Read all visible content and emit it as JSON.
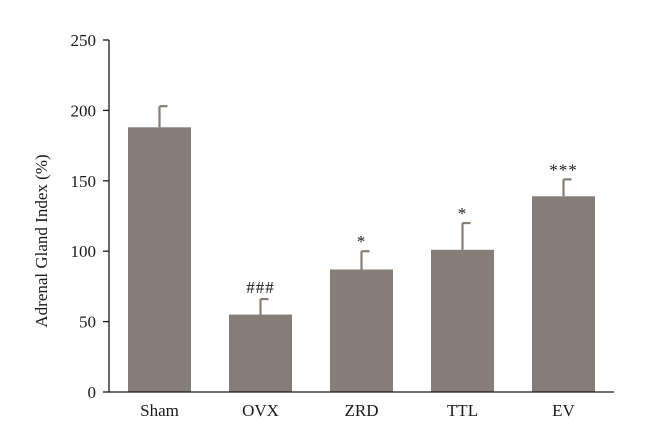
{
  "chart_data": {
    "type": "bar",
    "title": "",
    "xlabel": "",
    "ylabel": "Adrenal Gland Index (%)",
    "ylim": [
      0,
      250
    ],
    "yticks": [
      0,
      50,
      100,
      150,
      200,
      250
    ],
    "grid": false,
    "categories": [
      "Sham",
      "OVX",
      "ZRD",
      "TTL",
      "EV"
    ],
    "values": [
      188,
      55,
      87,
      101,
      139
    ],
    "error": [
      15,
      11,
      13,
      19,
      12
    ],
    "annotations": [
      "",
      "###",
      "*",
      "*",
      "***"
    ],
    "colors": {
      "bar": "#867d79",
      "axis": "#1a1a1a"
    }
  }
}
